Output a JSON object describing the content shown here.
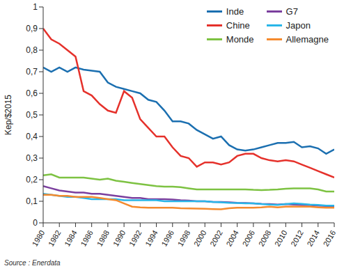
{
  "chart_data": {
    "type": "line",
    "y_label": "Kep/$2015",
    "source": "Source : Enerdata",
    "x": [
      1980,
      1981,
      1982,
      1983,
      1984,
      1985,
      1986,
      1987,
      1988,
      1989,
      1990,
      1991,
      1992,
      1993,
      1994,
      1995,
      1996,
      1997,
      1998,
      1999,
      2000,
      2001,
      2002,
      2003,
      2004,
      2005,
      2006,
      2007,
      2008,
      2009,
      2010,
      2011,
      2012,
      2013,
      2014,
      2015,
      2016
    ],
    "xlim": [
      1980,
      2016
    ],
    "xticks": [
      1980,
      1982,
      1984,
      1986,
      1988,
      1990,
      1992,
      1994,
      1996,
      1998,
      2000,
      2002,
      2004,
      2006,
      2008,
      2010,
      2012,
      2014,
      2016
    ],
    "ylim": [
      0,
      1
    ],
    "yticks": [
      0,
      {
        "value": 0.1,
        "label": "0,1"
      },
      {
        "value": 0.2,
        "label": "0,2"
      },
      {
        "value": 0.3,
        "label": "0,3"
      },
      {
        "value": 0.4,
        "label": "0,4"
      },
      {
        "value": 0.5,
        "label": "0,5"
      },
      {
        "value": 0.6,
        "label": "0,6"
      },
      {
        "value": 0.7,
        "label": "0,7"
      },
      {
        "value": 0.8,
        "label": "0,8"
      },
      {
        "value": 0.9,
        "label": "0,9"
      },
      1
    ],
    "grid": false,
    "legend": "top-right",
    "series": [
      {
        "name": "Inde",
        "color": "#1b6fb0",
        "values": [
          0.72,
          0.7,
          0.72,
          0.7,
          0.72,
          0.71,
          0.705,
          0.7,
          0.65,
          0.63,
          0.62,
          0.61,
          0.6,
          0.57,
          0.56,
          0.52,
          0.47,
          0.47,
          0.46,
          0.43,
          0.41,
          0.39,
          0.4,
          0.36,
          0.34,
          0.335,
          0.34,
          0.35,
          0.36,
          0.37,
          0.37,
          0.375,
          0.35,
          0.355,
          0.345,
          0.32,
          0.34
        ]
      },
      {
        "name": "Chine",
        "color": "#e5312b",
        "values": [
          0.9,
          0.85,
          0.83,
          0.8,
          0.77,
          0.61,
          0.59,
          0.55,
          0.52,
          0.51,
          0.61,
          0.58,
          0.48,
          0.44,
          0.4,
          0.4,
          0.35,
          0.31,
          0.3,
          0.26,
          0.28,
          0.28,
          0.27,
          0.28,
          0.31,
          0.32,
          0.32,
          0.3,
          0.29,
          0.285,
          0.29,
          0.285,
          0.27,
          0.255,
          0.24,
          0.225,
          0.21
        ]
      },
      {
        "name": "Monde",
        "color": "#7dc242",
        "values": [
          0.22,
          0.225,
          0.21,
          0.21,
          0.21,
          0.21,
          0.205,
          0.2,
          0.205,
          0.195,
          0.19,
          0.185,
          0.18,
          0.175,
          0.17,
          0.168,
          0.168,
          0.165,
          0.16,
          0.155,
          0.155,
          0.155,
          0.155,
          0.155,
          0.155,
          0.155,
          0.153,
          0.152,
          0.153,
          0.155,
          0.158,
          0.16,
          0.16,
          0.16,
          0.155,
          0.145,
          0.145
        ]
      },
      {
        "name": "G7",
        "color": "#7b3f9e",
        "values": [
          0.17,
          0.16,
          0.15,
          0.145,
          0.14,
          0.14,
          0.135,
          0.135,
          0.13,
          0.125,
          0.12,
          0.115,
          0.115,
          0.11,
          0.11,
          0.11,
          0.108,
          0.105,
          0.103,
          0.1,
          0.1,
          0.097,
          0.097,
          0.095,
          0.093,
          0.092,
          0.09,
          0.088,
          0.087,
          0.085,
          0.087,
          0.085,
          0.083,
          0.082,
          0.08,
          0.078,
          0.077
        ]
      },
      {
        "name": "Japon",
        "color": "#29b6e8",
        "values": [
          0.135,
          0.13,
          0.125,
          0.12,
          0.12,
          0.115,
          0.11,
          0.11,
          0.11,
          0.11,
          0.105,
          0.105,
          0.105,
          0.105,
          0.105,
          0.1,
          0.1,
          0.1,
          0.1,
          0.1,
          0.1,
          0.097,
          0.095,
          0.093,
          0.092,
          0.09,
          0.09,
          0.087,
          0.085,
          0.083,
          0.087,
          0.09,
          0.088,
          0.085,
          0.083,
          0.08,
          0.08
        ]
      },
      {
        "name": "Allemagne",
        "color": "#f58a2e",
        "values": [
          0.13,
          0.13,
          0.125,
          0.125,
          0.12,
          0.12,
          0.12,
          0.115,
          0.11,
          0.105,
          0.09,
          0.075,
          0.072,
          0.07,
          0.07,
          0.07,
          0.07,
          0.068,
          0.067,
          0.066,
          0.065,
          0.064,
          0.063,
          0.068,
          0.07,
          0.07,
          0.07,
          0.072,
          0.075,
          0.072,
          0.075,
          0.075,
          0.075,
          0.075,
          0.072,
          0.07,
          0.07
        ]
      }
    ]
  }
}
